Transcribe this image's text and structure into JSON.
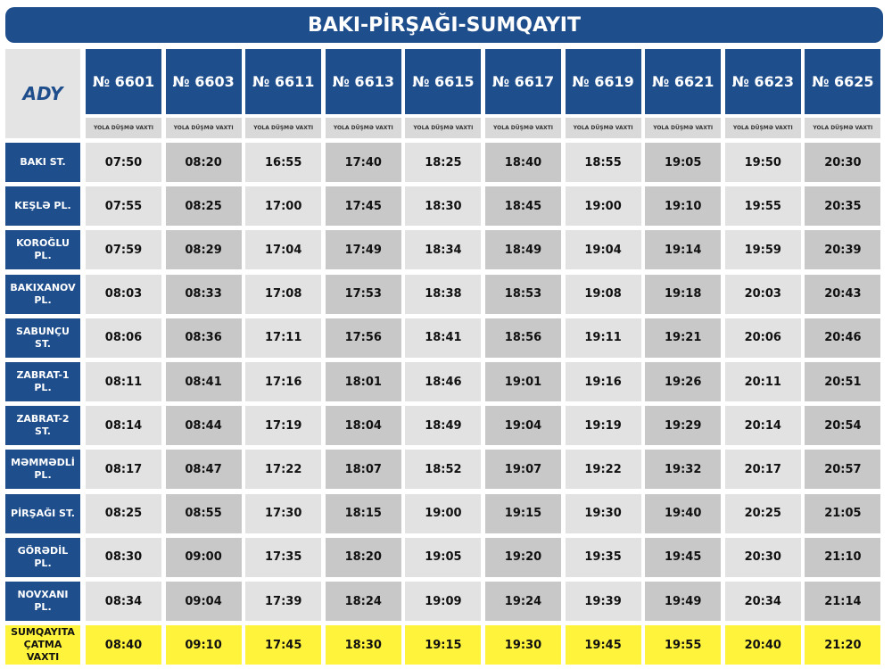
{
  "title": "BAKI-PİRŞAĞI-SUMQAYIT",
  "logo": "ADY",
  "columns": [
    {
      "train": "№ 6601",
      "sub": "YOLA DÜŞMƏ VAXTI"
    },
    {
      "train": "№ 6603",
      "sub": "YOLA DÜŞMƏ VAXTI"
    },
    {
      "train": "№ 6611",
      "sub": "YOLA DÜŞMƏ VAXTI"
    },
    {
      "train": "№ 6613",
      "sub": "YOLA DÜŞMƏ VAXTI"
    },
    {
      "train": "№ 6615",
      "sub": "YOLA DÜŞMƏ VAXTI"
    },
    {
      "train": "№ 6617",
      "sub": "YOLA DÜŞMƏ VAXTI"
    },
    {
      "train": "№ 6619",
      "sub": "YOLA DÜŞMƏ VAXTI"
    },
    {
      "train": "№ 6621",
      "sub": "YOLA DÜŞMƏ VAXTI"
    },
    {
      "train": "№ 6623",
      "sub": "YOLA DÜŞMƏ VAXTI"
    },
    {
      "train": "№ 6625",
      "sub": "YOLA DÜŞMƏ VAXTI"
    }
  ],
  "rows": [
    {
      "station": "BAKI ST.",
      "times": [
        "07:50",
        "08:20",
        "16:55",
        "17:40",
        "18:25",
        "18:40",
        "18:55",
        "19:05",
        "19:50",
        "20:30"
      ]
    },
    {
      "station": "KEŞLƏ PL.",
      "times": [
        "07:55",
        "08:25",
        "17:00",
        "17:45",
        "18:30",
        "18:45",
        "19:00",
        "19:10",
        "19:55",
        "20:35"
      ]
    },
    {
      "station": "KOROĞLU PL.",
      "times": [
        "07:59",
        "08:29",
        "17:04",
        "17:49",
        "18:34",
        "18:49",
        "19:04",
        "19:14",
        "19:59",
        "20:39"
      ]
    },
    {
      "station": "BAKIXANOV PL.",
      "times": [
        "08:03",
        "08:33",
        "17:08",
        "17:53",
        "18:38",
        "18:53",
        "19:08",
        "19:18",
        "20:03",
        "20:43"
      ]
    },
    {
      "station": "SABUNÇU ST.",
      "times": [
        "08:06",
        "08:36",
        "17:11",
        "17:56",
        "18:41",
        "18:56",
        "19:11",
        "19:21",
        "20:06",
        "20:46"
      ]
    },
    {
      "station": "ZABRAT-1 PL.",
      "times": [
        "08:11",
        "08:41",
        "17:16",
        "18:01",
        "18:46",
        "19:01",
        "19:16",
        "19:26",
        "20:11",
        "20:51"
      ]
    },
    {
      "station": "ZABRAT-2 ST.",
      "times": [
        "08:14",
        "08:44",
        "17:19",
        "18:04",
        "18:49",
        "19:04",
        "19:19",
        "19:29",
        "20:14",
        "20:54"
      ]
    },
    {
      "station": "MƏMMƏDLİ PL.",
      "times": [
        "08:17",
        "08:47",
        "17:22",
        "18:07",
        "18:52",
        "19:07",
        "19:22",
        "19:32",
        "20:17",
        "20:57"
      ]
    },
    {
      "station": "PİRŞAĞI ST.",
      "times": [
        "08:25",
        "08:55",
        "17:30",
        "18:15",
        "19:00",
        "19:15",
        "19:30",
        "19:40",
        "20:25",
        "21:05"
      ]
    },
    {
      "station": "GÖRƏDİL PL.",
      "times": [
        "08:30",
        "09:00",
        "17:35",
        "18:20",
        "19:05",
        "19:20",
        "19:35",
        "19:45",
        "20:30",
        "21:10"
      ]
    },
    {
      "station": "NOVXANI PL.",
      "times": [
        "08:34",
        "09:04",
        "17:39",
        "18:24",
        "19:09",
        "19:24",
        "19:39",
        "19:49",
        "20:34",
        "21:14"
      ]
    },
    {
      "station": "SUMQAYITA ÇATMA VAXTI",
      "times": [
        "08:40",
        "09:10",
        "17:45",
        "18:30",
        "19:15",
        "19:30",
        "19:45",
        "19:55",
        "20:40",
        "21:20"
      ]
    }
  ]
}
